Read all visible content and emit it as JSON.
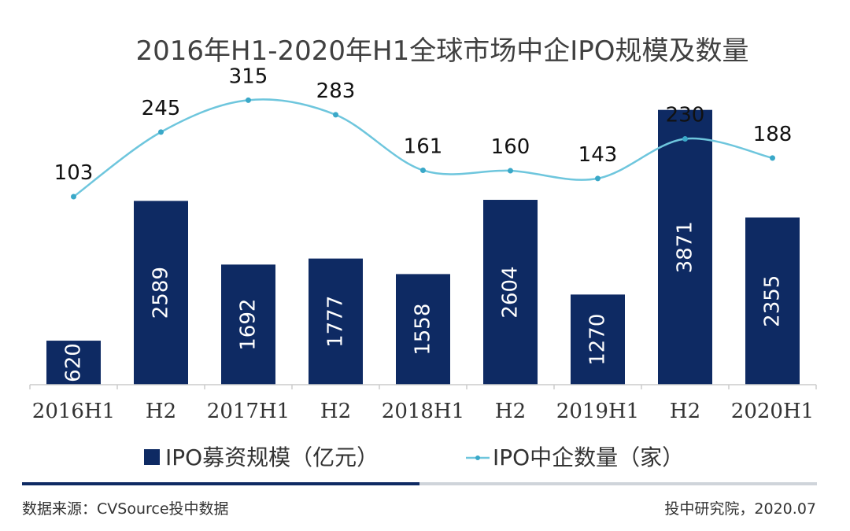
{
  "chart_data": {
    "type": "bar",
    "title": "2016年H1-2020年H1全球市场中企IPO规模及数量",
    "categories": [
      "2016H1",
      "H2",
      "2017H1",
      "H2",
      "2018H1",
      "H2",
      "2019H1",
      "H2",
      "2020H1"
    ],
    "series": [
      {
        "name": "IPO募资规模（亿元）",
        "type": "bar",
        "color": "#0e2a63",
        "values": [
          620,
          2589,
          1692,
          1777,
          1558,
          2604,
          1270,
          3871,
          2355
        ]
      },
      {
        "name": "IPO中企数量（家）",
        "type": "line",
        "color": "#6ec6dd",
        "values": [
          103,
          245,
          315,
          283,
          161,
          160,
          143,
          230,
          188
        ]
      }
    ],
    "bar_ylim": [
      0,
      4200
    ],
    "line_ylim": [
      -310,
      345
    ],
    "legend_position": "bottom",
    "grid": false
  },
  "footer": {
    "source": "数据来源：CVSource投中数据",
    "credit": "投中研究院，2020.07"
  }
}
